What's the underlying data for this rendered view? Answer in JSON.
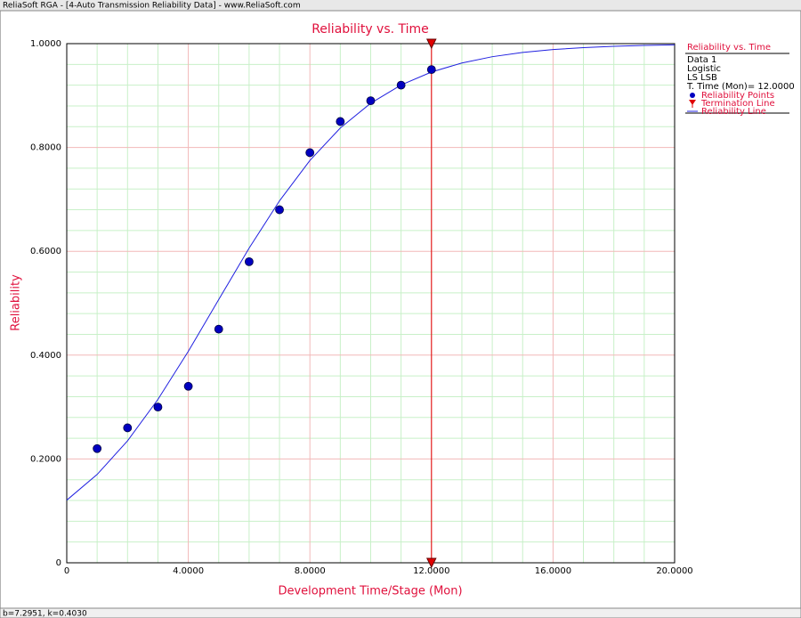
{
  "window_title": "ReliaSoft RGA - [4-Auto Transmission Reliability Data] - www.ReliaSoft.com",
  "status_bar": "b=7.2951, k=0.4030",
  "chart_data": {
    "type": "line",
    "title": "Reliability vs. Time",
    "x_label": "Development Time/Stage (Mon)",
    "y_label": "Reliability",
    "xlim": [
      0,
      20
    ],
    "ylim": [
      0,
      1
    ],
    "xticks": [
      0,
      {
        "value": 4,
        "label": "4.0000"
      },
      {
        "value": 8,
        "label": "8.0000"
      },
      {
        "value": 12,
        "label": "12.0000"
      },
      {
        "value": 16,
        "label": "16.0000"
      },
      {
        "value": 20,
        "label": "20.0000"
      }
    ],
    "yticks": [
      0,
      {
        "value": 0.2,
        "label": "0.2000"
      },
      {
        "value": 0.4,
        "label": "0.4000"
      },
      {
        "value": 0.6,
        "label": "0.6000"
      },
      {
        "value": 0.8,
        "label": "0.8000"
      },
      {
        "value": 1,
        "label": "1.0000"
      }
    ],
    "minor_xticks": [
      1,
      2,
      3,
      5,
      6,
      7,
      9,
      10,
      11,
      13,
      14,
      15,
      17,
      18,
      19
    ],
    "minor_yticks": [
      0.04,
      0.08,
      0.12,
      0.16,
      0.24,
      0.28,
      0.32,
      0.36,
      0.44,
      0.48,
      0.52,
      0.56,
      0.64,
      0.68,
      0.72,
      0.76,
      0.84,
      0.88,
      0.92,
      0.96
    ],
    "grid": true,
    "grid_color": "#f2b8b8",
    "minor_grid_color": "#c8f0c8",
    "legend_title": "Reliability vs. Time",
    "legend_info": [
      "Data 1",
      "Logistic",
      "LS LSB",
      "T. Time (Mon)= 12.0000"
    ],
    "series": [
      {
        "name": "Reliability Points",
        "color": "#0000c0",
        "style": "markers",
        "x": [
          1,
          2,
          3,
          4,
          5,
          6,
          7,
          8,
          9,
          10,
          11,
          12
        ],
        "values": [
          0.22,
          0.26,
          0.3,
          0.34,
          0.45,
          0.58,
          0.68,
          0.79,
          0.85,
          0.89,
          0.92,
          0.95
        ]
      },
      {
        "name": "Termination Line",
        "color": "#e00000",
        "style": "vline",
        "x": [
          12,
          12
        ],
        "values": [
          0,
          1
        ]
      },
      {
        "name": "Reliability Line",
        "color": "#2020e0",
        "style": "line",
        "x": [
          0,
          1,
          2,
          3,
          4,
          5,
          6,
          7,
          8,
          9,
          10,
          11,
          12,
          13,
          14,
          15,
          16,
          17,
          18,
          19,
          20
        ],
        "values": [
          0.1206,
          0.1702,
          0.2349,
          0.3147,
          0.4073,
          0.507,
          0.6061,
          0.6972,
          0.775,
          0.8375,
          0.8852,
          0.9203,
          0.9453,
          0.9627,
          0.9748,
          0.983,
          0.9886,
          0.9923,
          0.9949,
          0.9966,
          0.9977
        ]
      }
    ]
  }
}
